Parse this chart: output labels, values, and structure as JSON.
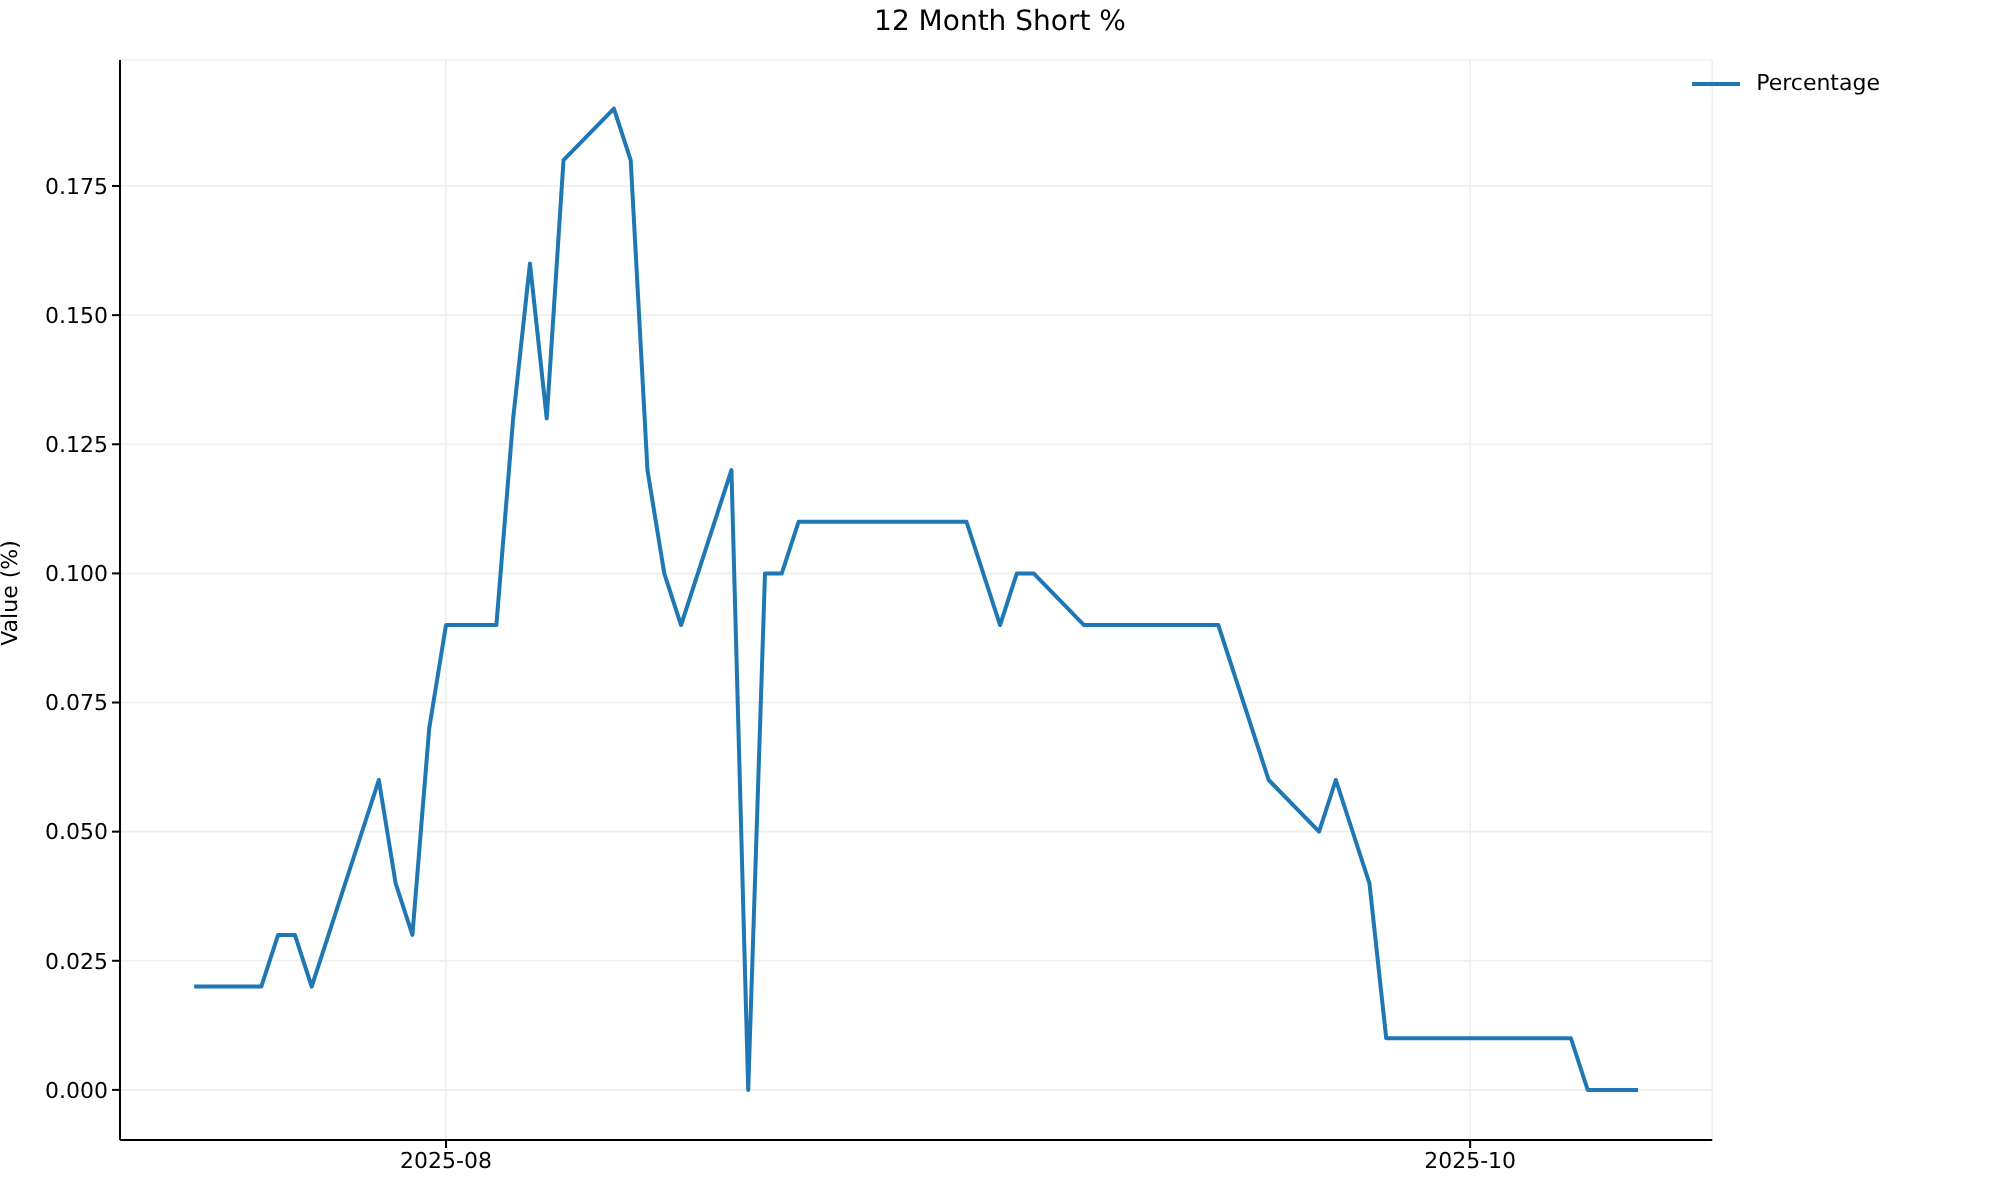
{
  "chart_data": {
    "type": "line",
    "title": "12 Month Short %",
    "ylabel": "Value (%)",
    "x": [
      "2025-07-17",
      "2025-07-21",
      "2025-07-22",
      "2025-07-23",
      "2025-07-24",
      "2025-07-28",
      "2025-07-29",
      "2025-07-30",
      "2025-07-31",
      "2025-08-01",
      "2025-08-04",
      "2025-08-05",
      "2025-08-06",
      "2025-08-07",
      "2025-08-08",
      "2025-08-11",
      "2025-08-12",
      "2025-08-13",
      "2025-08-14",
      "2025-08-15",
      "2025-08-18",
      "2025-08-19",
      "2025-08-20",
      "2025-08-21",
      "2025-08-22",
      "2025-09-01",
      "2025-09-03",
      "2025-09-04",
      "2025-09-05",
      "2025-09-08",
      "2025-09-16",
      "2025-09-19",
      "2025-09-22",
      "2025-09-23",
      "2025-09-25",
      "2025-09-26",
      "2025-10-07",
      "2025-10-08",
      "2025-10-11"
    ],
    "series": [
      {
        "name": "Percentage",
        "color": "#1f77b4",
        "values": [
          0.02,
          0.02,
          0.03,
          0.03,
          0.02,
          0.06,
          0.04,
          0.03,
          0.07,
          0.09,
          0.09,
          0.13,
          0.16,
          0.13,
          0.18,
          0.19,
          0.18,
          0.12,
          0.1,
          0.09,
          0.12,
          0.0,
          0.1,
          0.1,
          0.11,
          0.11,
          0.09,
          0.1,
          0.1,
          0.09,
          0.09,
          0.06,
          0.05,
          0.06,
          0.04,
          0.01,
          0.01,
          0.0,
          0.0
        ]
      }
    ],
    "xlim": [
      "2025-07-12T14:00",
      "2025-10-15T10:00"
    ],
    "xticks": [
      {
        "value": "2025-08-01",
        "label": "2025-08"
      },
      {
        "value": "2025-10-01",
        "label": "2025-10"
      }
    ],
    "ylim": [
      -0.0097,
      0.1994
    ],
    "yticks": [
      {
        "value": 0,
        "label": "0.000"
      },
      {
        "value": 0.025,
        "label": "0.025"
      },
      {
        "value": 0.05,
        "label": "0.050"
      },
      {
        "value": 0.075,
        "label": "0.075"
      },
      {
        "value": 0.1,
        "label": "0.100"
      },
      {
        "value": 0.125,
        "label": "0.125"
      },
      {
        "value": 0.15,
        "label": "0.150"
      },
      {
        "value": 0.175,
        "label": "0.175"
      }
    ],
    "grid": true,
    "legend": "top right",
    "marker": "none",
    "line_style": "solid"
  }
}
